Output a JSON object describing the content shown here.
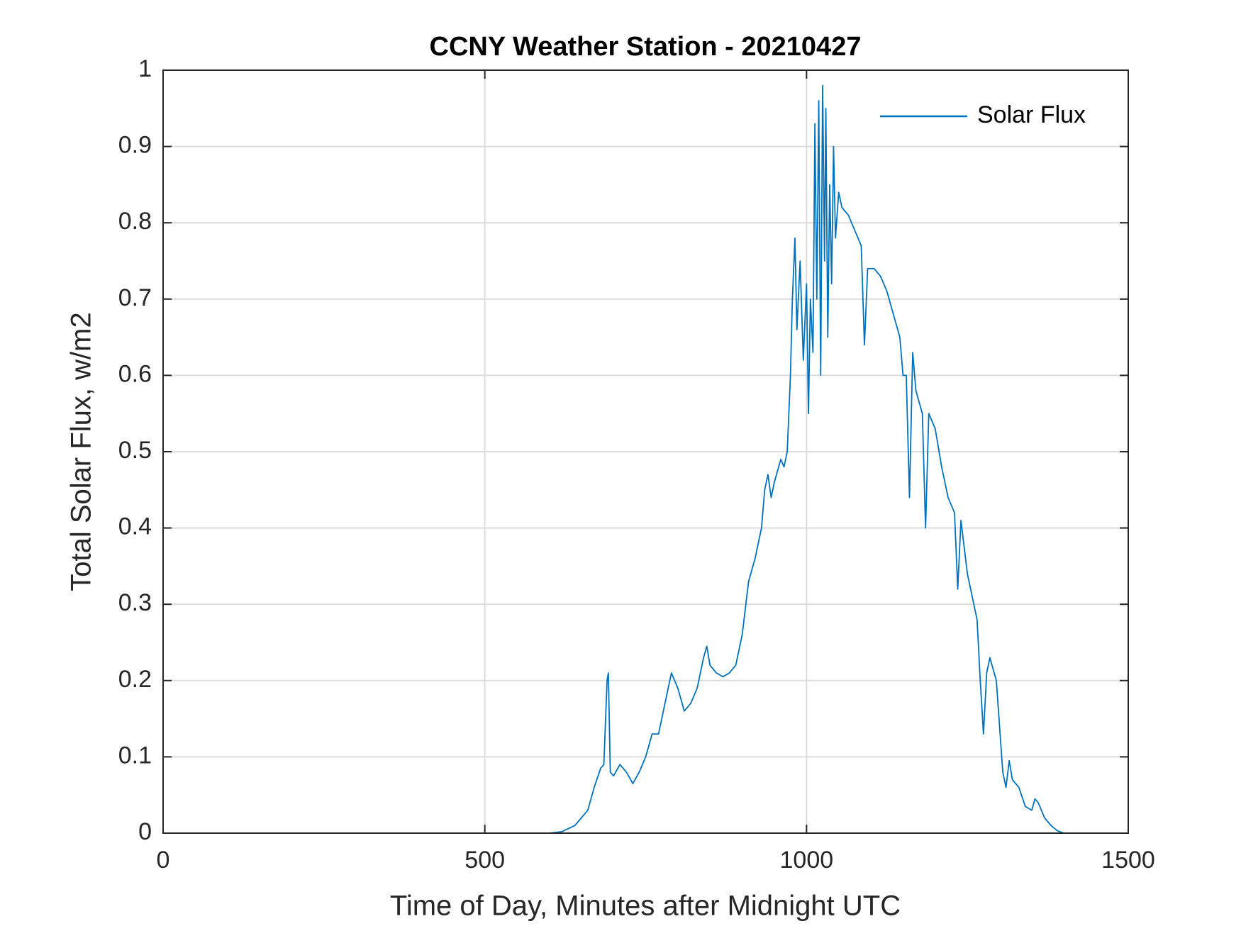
{
  "chart_data": {
    "type": "line",
    "title": "CCNY Weather Station - 20210427",
    "xlabel": "Time of Day, Minutes after Midnight UTC",
    "ylabel": "Total Solar Flux, w/m2",
    "x": [
      0,
      600,
      620,
      640,
      660,
      670,
      680,
      685,
      690,
      692,
      695,
      700,
      710,
      720,
      730,
      740,
      750,
      760,
      770,
      780,
      790,
      800,
      810,
      820,
      830,
      840,
      845,
      850,
      860,
      870,
      880,
      890,
      900,
      910,
      920,
      930,
      935,
      940,
      945,
      950,
      960,
      965,
      970,
      975,
      978,
      982,
      985,
      990,
      995,
      1000,
      1003,
      1006,
      1010,
      1013,
      1016,
      1019,
      1022,
      1025,
      1028,
      1030,
      1033,
      1036,
      1039,
      1042,
      1045,
      1050,
      1055,
      1065,
      1075,
      1085,
      1090,
      1095,
      1105,
      1115,
      1125,
      1135,
      1145,
      1150,
      1155,
      1160,
      1165,
      1170,
      1180,
      1185,
      1190,
      1200,
      1210,
      1220,
      1230,
      1235,
      1240,
      1250,
      1260,
      1265,
      1270,
      1275,
      1280,
      1285,
      1295,
      1300,
      1305,
      1310,
      1315,
      1320,
      1330,
      1340,
      1350,
      1355,
      1360,
      1370,
      1380,
      1390,
      1400,
      1440
    ],
    "series": [
      {
        "name": "Solar Flux",
        "color": "#0072bd",
        "values": [
          0,
          0,
          0.002,
          0.01,
          0.03,
          0.06,
          0.085,
          0.09,
          0.2,
          0.21,
          0.08,
          0.075,
          0.09,
          0.08,
          0.065,
          0.08,
          0.1,
          0.13,
          0.13,
          0.17,
          0.21,
          0.19,
          0.16,
          0.17,
          0.19,
          0.23,
          0.245,
          0.22,
          0.21,
          0.205,
          0.21,
          0.22,
          0.26,
          0.33,
          0.36,
          0.4,
          0.45,
          0.47,
          0.44,
          0.46,
          0.49,
          0.48,
          0.5,
          0.6,
          0.7,
          0.78,
          0.66,
          0.75,
          0.62,
          0.72,
          0.55,
          0.7,
          0.63,
          0.93,
          0.7,
          0.96,
          0.6,
          0.98,
          0.75,
          0.95,
          0.65,
          0.85,
          0.72,
          0.9,
          0.78,
          0.84,
          0.82,
          0.81,
          0.79,
          0.77,
          0.64,
          0.74,
          0.74,
          0.73,
          0.71,
          0.68,
          0.65,
          0.6,
          0.6,
          0.44,
          0.63,
          0.58,
          0.55,
          0.4,
          0.55,
          0.53,
          0.48,
          0.44,
          0.42,
          0.32,
          0.41,
          0.34,
          0.3,
          0.28,
          0.2,
          0.13,
          0.21,
          0.23,
          0.2,
          0.14,
          0.08,
          0.06,
          0.095,
          0.07,
          0.06,
          0.035,
          0.03,
          0.045,
          0.04,
          0.02,
          0.01,
          0.003,
          0,
          0
        ]
      }
    ],
    "xlim": [
      0,
      1500
    ],
    "xticks": [
      0,
      500,
      1000,
      1500
    ],
    "ylim": [
      0,
      1
    ],
    "yticks": [
      0,
      0.1,
      0.2,
      0.3,
      0.4,
      0.5,
      0.6,
      0.7,
      0.8,
      0.9,
      1
    ],
    "grid": true,
    "legend": "upper right"
  }
}
